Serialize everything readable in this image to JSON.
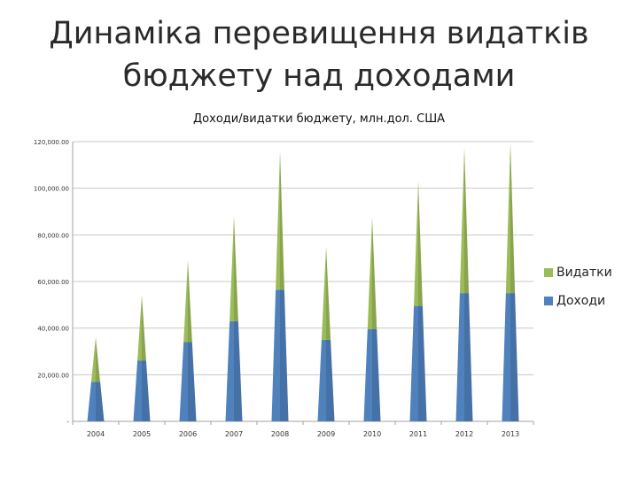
{
  "slide": {
    "title_line1": "Динаміка перевищення видатків",
    "title_line2": "бюджету над доходами"
  },
  "chart_data": {
    "type": "bar",
    "subtype": "stacked-cone",
    "title": "Доходи/видатки бюджету, млн.дол. США",
    "xlabel": "",
    "ylabel": "",
    "categories": [
      "2004",
      "2005",
      "2006",
      "2007",
      "2008",
      "2009",
      "2010",
      "2011",
      "2012",
      "2013"
    ],
    "series": [
      {
        "name": "Доходи",
        "color": "#4f81bd",
        "values": [
          17000,
          26000,
          34000,
          43000,
          56500,
          35000,
          39500,
          49500,
          55000,
          55000
        ]
      },
      {
        "name": "Видатки",
        "color": "#9bbb59",
        "values": [
          19000,
          28000,
          35000,
          45000,
          59500,
          40000,
          48000,
          53500,
          62500,
          64500
        ]
      }
    ],
    "ylim": [
      0,
      120000
    ],
    "yticks": [
      0,
      20000,
      40000,
      60000,
      80000,
      100000,
      120000
    ],
    "ytick_labels": [
      "-",
      "20,000.00",
      "40,000.00",
      "60,000.00",
      "80,000.00",
      "100,000.00",
      "120,000.00"
    ],
    "grid": true,
    "legend_position": "right"
  }
}
